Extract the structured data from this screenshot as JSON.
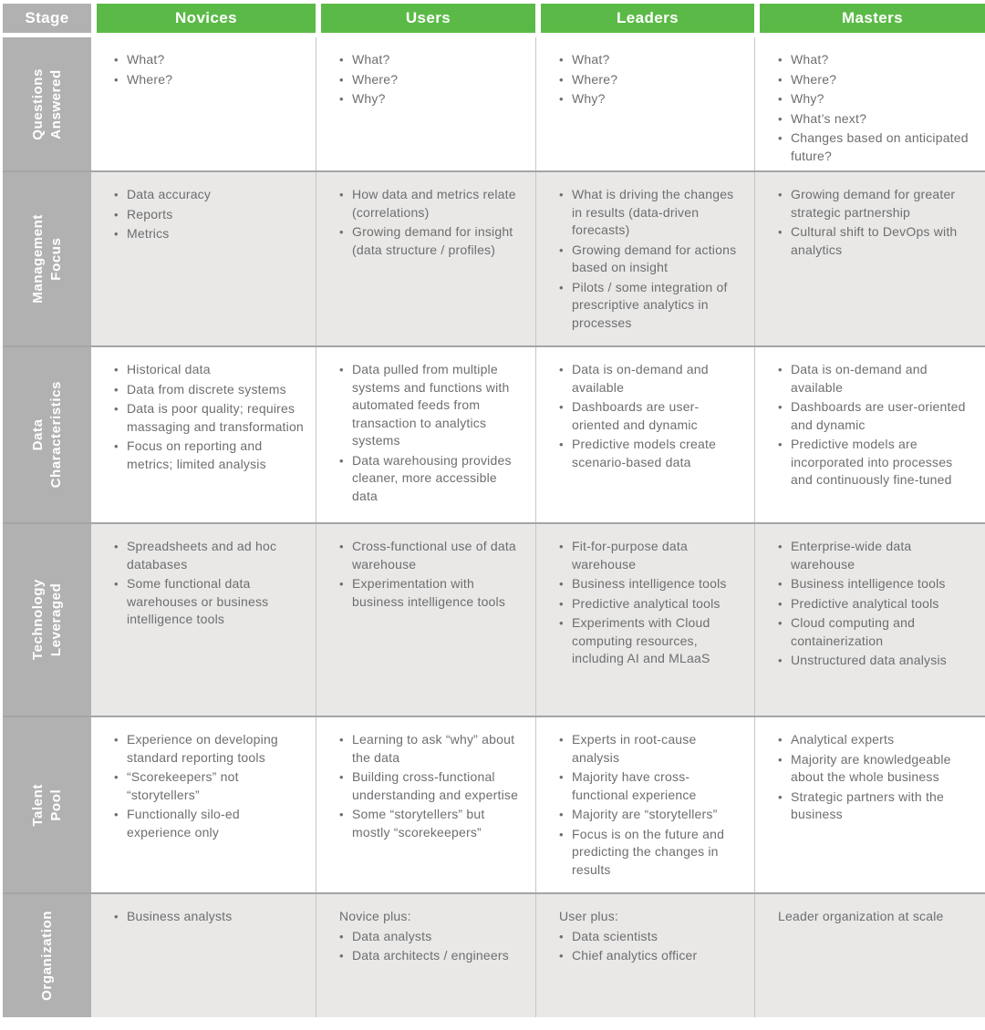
{
  "colors": {
    "header_green": "#5bba47",
    "label_gray": "#b1b1b1",
    "alt_row_bg": "#e9e8e6",
    "body_text": "#6d6e71",
    "row_divider": "#a5a5a5",
    "column_divider": "#c6c6c6",
    "header_text": "#ffffff"
  },
  "header": {
    "stage_label": "Stage",
    "columns": [
      "Novices",
      "Users",
      "Leaders",
      "Masters"
    ]
  },
  "rows": [
    {
      "id": "questions-answered",
      "label": "Questions\nAnswered",
      "cells": [
        {
          "items": [
            "What?",
            "Where?"
          ]
        },
        {
          "items": [
            "What?",
            "Where?",
            "Why?"
          ]
        },
        {
          "items": [
            "What?",
            "Where?",
            "Why?"
          ]
        },
        {
          "items": [
            "What?",
            "Where?",
            "Why?",
            "What’s next?",
            "Changes based on anticipated future?"
          ]
        }
      ]
    },
    {
      "id": "management-focus",
      "label": "Management\nFocus",
      "cells": [
        {
          "items": [
            "Data accuracy",
            "Reports",
            "Metrics"
          ]
        },
        {
          "items": [
            "How data and metrics relate (correlations)",
            "Growing demand for insight (data structure / profiles)"
          ]
        },
        {
          "items": [
            "What is driving the changes in results (data-driven forecasts)",
            "Growing demand for actions based on insight",
            "Pilots / some integration of prescriptive analytics in processes"
          ]
        },
        {
          "items": [
            "Growing demand for greater strategic partnership",
            "Cultural shift to DevOps with analytics"
          ]
        }
      ]
    },
    {
      "id": "data-characteristics",
      "label": "Data\nCharacteristics",
      "cells": [
        {
          "items": [
            "Historical data",
            "Data from discrete systems",
            "Data is poor quality; requires massaging and transformation",
            "Focus on reporting and metrics; limited analysis"
          ]
        },
        {
          "items": [
            "Data pulled from multiple systems and functions with automated feeds from transaction to analytics systems",
            "Data warehousing provides cleaner, more accessible data"
          ]
        },
        {
          "items": [
            "Data is on-demand and available",
            "Dashboards are user-oriented and dynamic",
            "Predictive models create scenario-based data"
          ]
        },
        {
          "items": [
            "Data is on-demand and available",
            "Dashboards are user-oriented and dynamic",
            "Predictive models are incorporated into processes and continuously fine-tuned"
          ]
        }
      ]
    },
    {
      "id": "technology-leveraged",
      "label": "Technology\nLeveraged",
      "cells": [
        {
          "items": [
            "Spreadsheets and ad hoc databases",
            "Some functional data warehouses or business intelligence tools"
          ]
        },
        {
          "items": [
            "Cross-functional use of data warehouse",
            "Experimentation with business intelligence tools"
          ]
        },
        {
          "items": [
            "Fit-for-purpose data warehouse",
            "Business intelligence tools",
            "Predictive analytical tools",
            "Experiments with Cloud computing resources, including AI and MLaaS"
          ]
        },
        {
          "items": [
            "Enterprise-wide data warehouse",
            "Business intelligence tools",
            "Predictive analytical tools",
            "Cloud computing and containerization",
            "Unstructured data analysis"
          ]
        }
      ]
    },
    {
      "id": "talent-pool",
      "label": "Talent\nPool",
      "cells": [
        {
          "items": [
            "Experience on developing standard reporting tools",
            "“Scorekeepers” not “storytellers”",
            "Functionally silo-ed experience only"
          ]
        },
        {
          "items": [
            "Learning to ask “why” about the data",
            "Building cross-functional understanding and expertise",
            "Some “storytellers” but mostly “scorekeepers”"
          ]
        },
        {
          "items": [
            "Experts in root-cause analysis",
            "Majority have cross-functional experience",
            "Majority are “storytellers”",
            "Focus is on the future and predicting the changes in results"
          ]
        },
        {
          "items": [
            "Analytical experts",
            "Majority are knowledgeable about the whole business",
            "Strategic partners with the business"
          ]
        }
      ]
    },
    {
      "id": "organization",
      "label": "Organization",
      "cells": [
        {
          "items": [
            "Business analysts"
          ]
        },
        {
          "intro": "Novice plus:",
          "items": [
            "Data analysts",
            "Data architects / engineers"
          ]
        },
        {
          "intro": "User plus:",
          "items": [
            "Data scientists",
            "Chief analytics officer"
          ]
        },
        {
          "intro": "Leader organization at scale",
          "items": []
        }
      ]
    }
  ]
}
